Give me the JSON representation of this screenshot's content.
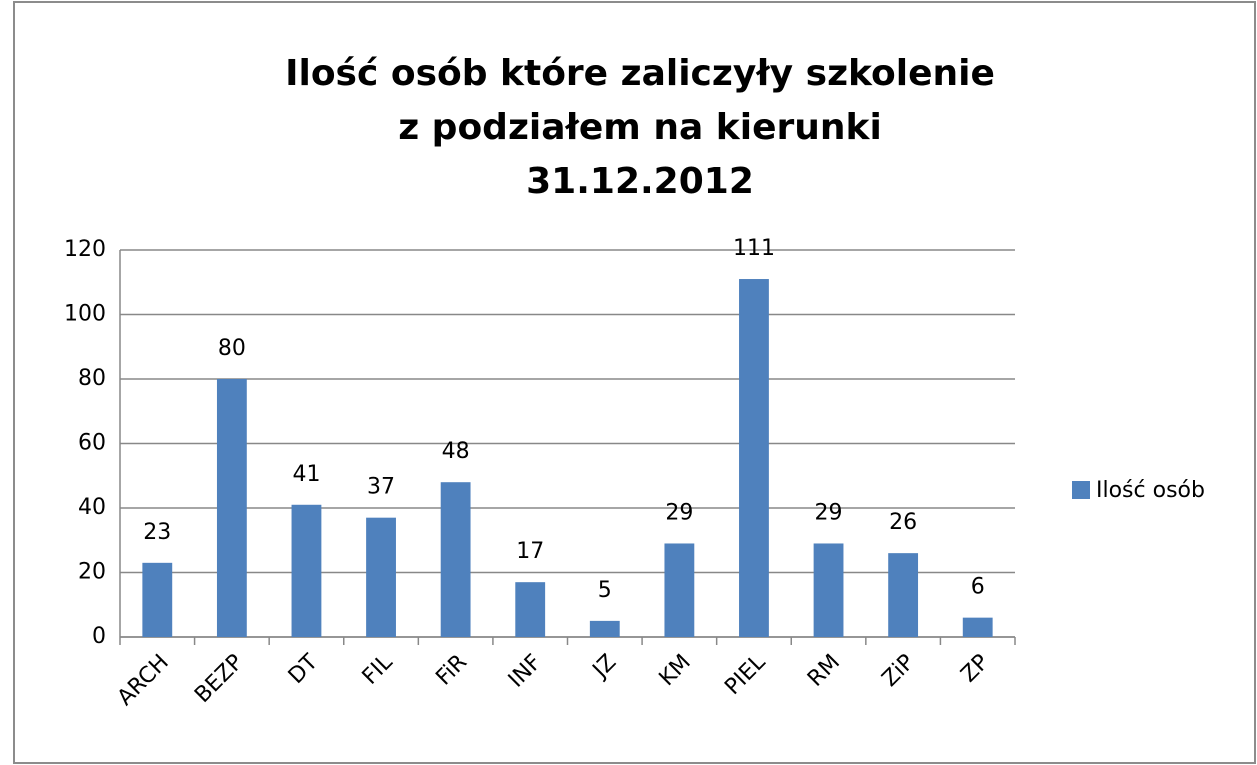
{
  "chart_data": {
    "type": "bar",
    "title": [
      "Ilość osób które zaliczyły szkolenie",
      "z podziałem na kierunki",
      "31.12.2012"
    ],
    "categories": [
      "ARCH",
      "BEZP",
      "DT",
      "FIL",
      "FiR",
      "INF",
      "JZ",
      "KM",
      "PIEL",
      "RM",
      "ZiP",
      "ZP"
    ],
    "series": [
      {
        "name": "Ilość osób",
        "color": "#4f81bd",
        "values": [
          23,
          80,
          41,
          37,
          48,
          17,
          5,
          29,
          111,
          29,
          26,
          6
        ]
      }
    ],
    "ylim": [
      0,
      120
    ],
    "yticks": [
      0,
      20,
      40,
      60,
      80,
      100,
      120
    ],
    "grid": true,
    "legend": "right",
    "data_labels": true
  }
}
